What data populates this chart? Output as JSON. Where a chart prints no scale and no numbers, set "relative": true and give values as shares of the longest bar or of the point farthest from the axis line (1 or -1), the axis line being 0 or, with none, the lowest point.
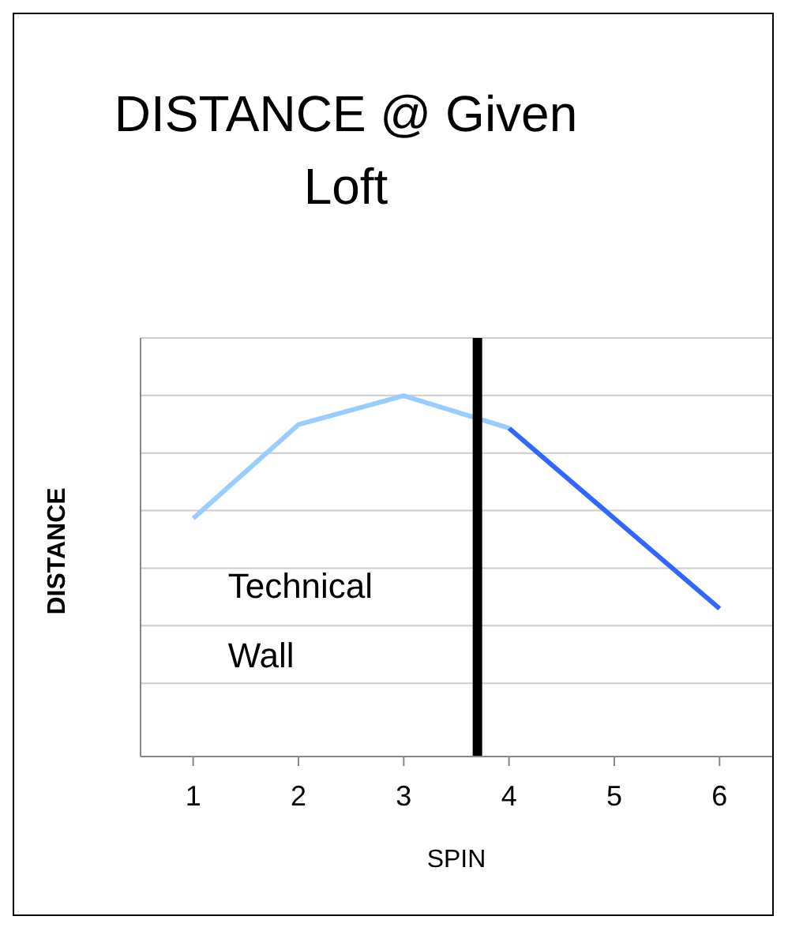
{
  "chart_data": {
    "type": "line",
    "title": "DISTANCE @ Given Loft",
    "xlabel": "SPIN",
    "ylabel": "DISTANCE",
    "relative": true,
    "x": [
      1,
      2,
      3,
      4,
      5,
      6
    ],
    "xlim": [
      0.5,
      6.5
    ],
    "xticks": [
      1,
      2,
      3,
      4,
      5,
      6
    ],
    "grid": "y",
    "legend": false,
    "marker": "none",
    "series": [
      {
        "color": "#99ccff",
        "values": [
          0.66,
          0.92,
          1,
          0.91,
          null,
          null
        ]
      },
      {
        "color": "#3366ff",
        "values": [
          null,
          null,
          null,
          0.91,
          0.66,
          0.41
        ]
      }
    ],
    "ref_lines": [
      {
        "axis": "x",
        "value": 3.7,
        "label": "Technical Wall",
        "color": "#000000"
      }
    ]
  }
}
